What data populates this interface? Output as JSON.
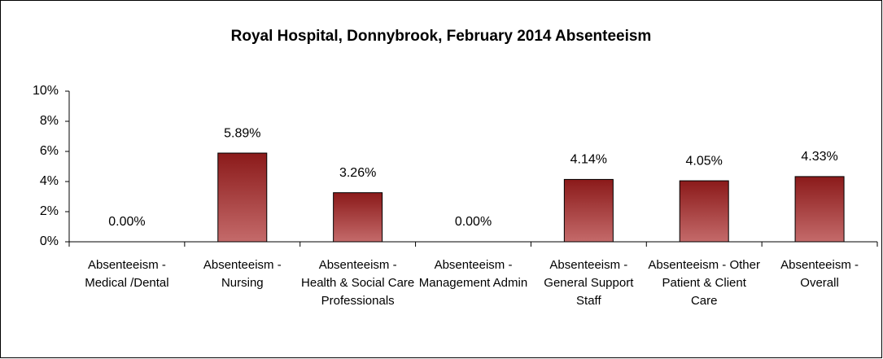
{
  "chart_data": {
    "type": "bar",
    "title": "Royal Hospital, Donnybrook, February 2014 Absenteeism",
    "categories": [
      "Absenteeism - Medical /Dental",
      "Absenteeism - Nursing",
      "Absenteeism - Health & Social Care Professionals",
      "Absenteeism - Management Admin",
      "Absenteeism - General Support Staff",
      "Absenteeism - Other Patient & Client Care",
      "Absenteeism - Overall"
    ],
    "values": [
      0,
      5.89,
      3.26,
      0,
      4.14,
      4.05,
      4.33
    ],
    "value_labels": [
      "0.00%",
      "5.89%",
      "3.26%",
      "0.00%",
      "4.14%",
      "4.05%",
      "4.33%"
    ],
    "color": "#8b1a1a",
    "ylim": [
      0,
      10
    ],
    "yticks": [
      {
        "value": 0,
        "label": "0%"
      },
      {
        "value": 2,
        "label": "2%"
      },
      {
        "value": 4,
        "label": "4%"
      },
      {
        "value": 6,
        "label": "6%"
      },
      {
        "value": 8,
        "label": "8%"
      },
      {
        "value": 10,
        "label": "10%"
      }
    ],
    "grid": false
  }
}
